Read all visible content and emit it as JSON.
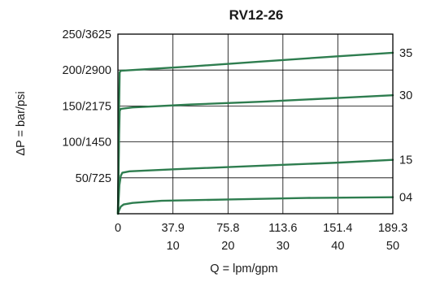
{
  "chart_data": {
    "type": "line",
    "title": "RV12-26",
    "xlabel": "Q = lpm/gpm",
    "ylabel": "ΔP = bar/psi",
    "x_ticks_primary": [
      "0",
      "37.9",
      "75.8",
      "113.6",
      "151.4",
      "189.3"
    ],
    "x_ticks_secondary": [
      "10",
      "20",
      "30",
      "40",
      "50"
    ],
    "x_tick_values": [
      0,
      37.9,
      75.8,
      113.6,
      151.4,
      189.3
    ],
    "xlim": [
      0,
      189.3
    ],
    "y_ticks": [
      "50/725",
      "100/1450",
      "150/2175",
      "200/2900",
      "250/3625"
    ],
    "y_tick_values": [
      50,
      100,
      150,
      200,
      250
    ],
    "ylim": [
      0,
      250
    ],
    "grid": true,
    "color": "#2e7d4f",
    "series": [
      {
        "name": "35",
        "points": [
          [
            0.0,
            0
          ],
          [
            0.4,
            60
          ],
          [
            0.8,
            150
          ],
          [
            1.2,
            197
          ],
          [
            2,
            199
          ],
          [
            10,
            200
          ],
          [
            50,
            205
          ],
          [
            100,
            212
          ],
          [
            150,
            219
          ],
          [
            189.3,
            224
          ]
        ]
      },
      {
        "name": "30",
        "points": [
          [
            0.0,
            0
          ],
          [
            0.4,
            50
          ],
          [
            0.8,
            110
          ],
          [
            1.2,
            143
          ],
          [
            2,
            146
          ],
          [
            10,
            148
          ],
          [
            50,
            152
          ],
          [
            100,
            156
          ],
          [
            150,
            161
          ],
          [
            189.3,
            165
          ]
        ]
      },
      {
        "name": "15",
        "points": [
          [
            0.0,
            0
          ],
          [
            0.5,
            20
          ],
          [
            1.0,
            40
          ],
          [
            2,
            53
          ],
          [
            3,
            57
          ],
          [
            8,
            59
          ],
          [
            40,
            62
          ],
          [
            100,
            67
          ],
          [
            150,
            71
          ],
          [
            189.3,
            75
          ]
        ]
      },
      {
        "name": "04",
        "points": [
          [
            0.0,
            0
          ],
          [
            0.8,
            5
          ],
          [
            2,
            10
          ],
          [
            4,
            13
          ],
          [
            10,
            15
          ],
          [
            30,
            18
          ],
          [
            80,
            20
          ],
          [
            130,
            22
          ],
          [
            189.3,
            23
          ]
        ]
      }
    ]
  }
}
